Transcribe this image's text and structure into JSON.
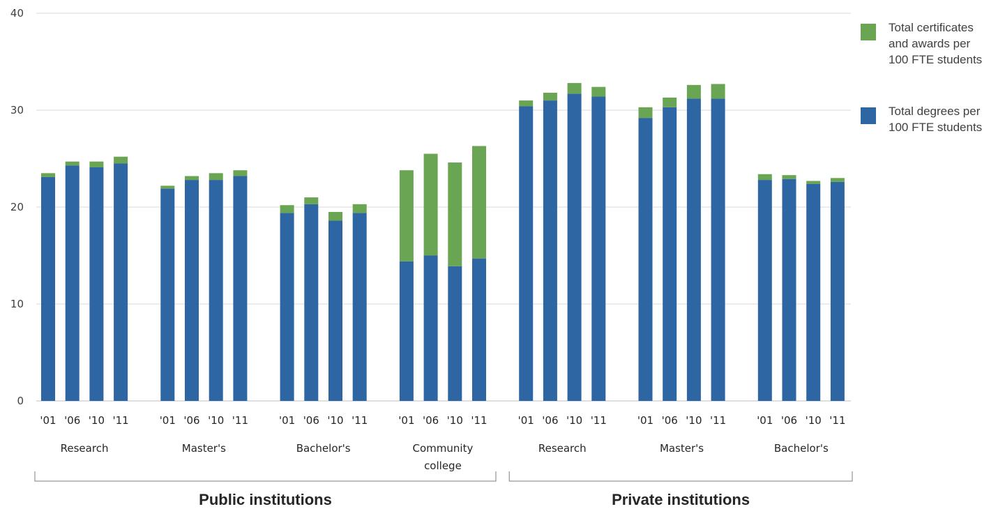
{
  "chart_data": {
    "type": "bar",
    "stacked": true,
    "ylim": [
      0,
      40
    ],
    "yticks": [
      0,
      10,
      20,
      30,
      40
    ],
    "grid": true,
    "legend_position": "right",
    "legend": [
      {
        "key": "certificates",
        "lines": [
          "Total certificates",
          "and awards per",
          "100 FTE students"
        ],
        "color": "#6aa553"
      },
      {
        "key": "degrees",
        "lines": [
          "Total degrees per",
          "100 FTE students"
        ],
        "color": "#2e65a3"
      }
    ],
    "years": [
      "'01",
      "'06",
      "'10",
      "'11"
    ],
    "groups": [
      {
        "name": "Public institutions",
        "categories": [
          {
            "name": [
              "Research"
            ],
            "degrees": [
              23.1,
              24.3,
              24.1,
              24.5
            ],
            "certificates": [
              0.4,
              0.4,
              0.6,
              0.7
            ]
          },
          {
            "name": [
              "Master's"
            ],
            "degrees": [
              21.9,
              22.8,
              22.8,
              23.2
            ],
            "certificates": [
              0.3,
              0.4,
              0.7,
              0.6
            ]
          },
          {
            "name": [
              "Bachelor's"
            ],
            "degrees": [
              19.4,
              20.3,
              18.6,
              19.4
            ],
            "certificates": [
              0.8,
              0.7,
              0.9,
              0.9
            ]
          },
          {
            "name": [
              "Community",
              "college"
            ],
            "degrees": [
              14.4,
              15.0,
              13.9,
              14.7
            ],
            "certificates": [
              9.4,
              10.5,
              10.7,
              11.6
            ]
          }
        ]
      },
      {
        "name": "Private institutions",
        "categories": [
          {
            "name": [
              "Research"
            ],
            "degrees": [
              30.4,
              31.0,
              31.7,
              31.4
            ],
            "certificates": [
              0.6,
              0.8,
              1.1,
              1.0
            ]
          },
          {
            "name": [
              "Master's"
            ],
            "degrees": [
              29.2,
              30.3,
              31.2,
              31.2
            ],
            "certificates": [
              1.1,
              1.0,
              1.4,
              1.5
            ]
          },
          {
            "name": [
              "Bachelor's"
            ],
            "degrees": [
              22.8,
              22.9,
              22.4,
              22.6
            ],
            "certificates": [
              0.6,
              0.4,
              0.3,
              0.4
            ]
          }
        ]
      }
    ]
  }
}
